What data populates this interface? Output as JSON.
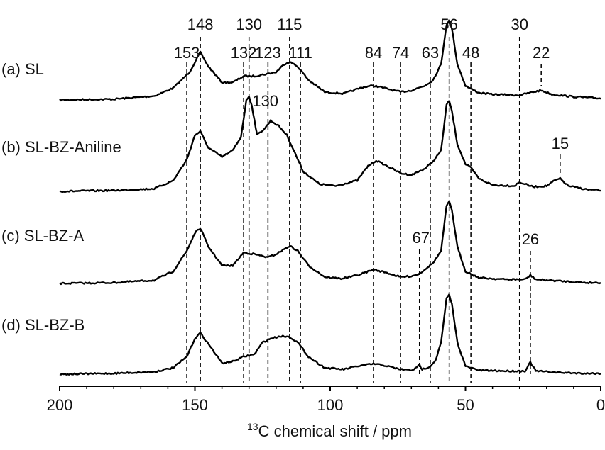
{
  "chart_data": {
    "type": "line",
    "title": "",
    "xlabel_superscript": "13",
    "xlabel_rest": "C chemical shift / ppm",
    "xlim": [
      200,
      0
    ],
    "x_reversed": true,
    "x_ticks": [
      "200",
      "150",
      "100",
      "50",
      "0"
    ],
    "x_tick_values": [
      200,
      150,
      100,
      50,
      0
    ],
    "grid": false,
    "line_color": "#000000",
    "series": [
      {
        "name": "(a) SL",
        "points": [
          [
            200,
            0
          ],
          [
            180,
            0.01
          ],
          [
            165,
            0.05
          ],
          [
            158,
            0.15
          ],
          [
            152,
            0.35
          ],
          [
            148,
            0.6
          ],
          [
            145,
            0.42
          ],
          [
            140,
            0.22
          ],
          [
            136,
            0.22
          ],
          [
            132,
            0.3
          ],
          [
            128,
            0.3
          ],
          [
            123,
            0.33
          ],
          [
            120,
            0.35
          ],
          [
            117,
            0.45
          ],
          [
            115,
            0.48
          ],
          [
            112,
            0.42
          ],
          [
            108,
            0.25
          ],
          [
            102,
            0.1
          ],
          [
            95,
            0.08
          ],
          [
            88,
            0.16
          ],
          [
            84,
            0.18
          ],
          [
            80,
            0.15
          ],
          [
            74,
            0.1
          ],
          [
            70,
            0.12
          ],
          [
            65,
            0.18
          ],
          [
            62,
            0.25
          ],
          [
            59,
            0.45
          ],
          [
            57,
            0.95
          ],
          [
            56,
            1.0
          ],
          [
            55,
            0.9
          ],
          [
            53,
            0.45
          ],
          [
            50,
            0.18
          ],
          [
            48,
            0.14
          ],
          [
            45,
            0.09
          ],
          [
            40,
            0.07
          ],
          [
            30,
            0.06
          ],
          [
            25,
            0.1
          ],
          [
            22,
            0.12
          ],
          [
            18,
            0.07
          ],
          [
            10,
            0.04
          ],
          [
            0,
            0.02
          ]
        ]
      },
      {
        "name": "(b) SL-BZ-Aniline",
        "points": [
          [
            200,
            0
          ],
          [
            180,
            0.01
          ],
          [
            165,
            0.03
          ],
          [
            158,
            0.12
          ],
          [
            153,
            0.35
          ],
          [
            150,
            0.62
          ],
          [
            148,
            0.66
          ],
          [
            145,
            0.48
          ],
          [
            140,
            0.38
          ],
          [
            136,
            0.45
          ],
          [
            133,
            0.6
          ],
          [
            131,
            1.0
          ],
          [
            130,
            1.05
          ],
          [
            129,
            0.95
          ],
          [
            127,
            0.62
          ],
          [
            124,
            0.7
          ],
          [
            122,
            0.78
          ],
          [
            119,
            0.72
          ],
          [
            116,
            0.62
          ],
          [
            113,
            0.42
          ],
          [
            110,
            0.22
          ],
          [
            104,
            0.08
          ],
          [
            98,
            0.06
          ],
          [
            90,
            0.12
          ],
          [
            86,
            0.28
          ],
          [
            83,
            0.34
          ],
          [
            79,
            0.28
          ],
          [
            74,
            0.2
          ],
          [
            70,
            0.18
          ],
          [
            65,
            0.25
          ],
          [
            62,
            0.33
          ],
          [
            59,
            0.45
          ],
          [
            57,
            0.95
          ],
          [
            56,
            1.0
          ],
          [
            55,
            0.88
          ],
          [
            53,
            0.52
          ],
          [
            50,
            0.3
          ],
          [
            48,
            0.26
          ],
          [
            45,
            0.14
          ],
          [
            40,
            0.07
          ],
          [
            32,
            0.06
          ],
          [
            30,
            0.1
          ],
          [
            25,
            0.05
          ],
          [
            20,
            0.06
          ],
          [
            17,
            0.12
          ],
          [
            15,
            0.14
          ],
          [
            12,
            0.06
          ],
          [
            5,
            0.02
          ],
          [
            0,
            0.01
          ]
        ]
      },
      {
        "name": "(c) SL-BZ-A",
        "points": [
          [
            200,
            0
          ],
          [
            180,
            0.01
          ],
          [
            165,
            0.04
          ],
          [
            158,
            0.15
          ],
          [
            153,
            0.4
          ],
          [
            150,
            0.62
          ],
          [
            148,
            0.68
          ],
          [
            145,
            0.45
          ],
          [
            140,
            0.22
          ],
          [
            136,
            0.22
          ],
          [
            132,
            0.38
          ],
          [
            128,
            0.36
          ],
          [
            123,
            0.32
          ],
          [
            120,
            0.36
          ],
          [
            117,
            0.42
          ],
          [
            115,
            0.46
          ],
          [
            112,
            0.4
          ],
          [
            108,
            0.22
          ],
          [
            102,
            0.08
          ],
          [
            96,
            0.06
          ],
          [
            90,
            0.1
          ],
          [
            84,
            0.17
          ],
          [
            80,
            0.14
          ],
          [
            74,
            0.08
          ],
          [
            70,
            0.09
          ],
          [
            67,
            0.12
          ],
          [
            64,
            0.2
          ],
          [
            62,
            0.25
          ],
          [
            59,
            0.4
          ],
          [
            57,
            0.95
          ],
          [
            56,
            1.0
          ],
          [
            55,
            0.9
          ],
          [
            53,
            0.45
          ],
          [
            50,
            0.15
          ],
          [
            45,
            0.07
          ],
          [
            35,
            0.05
          ],
          [
            28,
            0.05
          ],
          [
            26,
            0.1
          ],
          [
            24,
            0.05
          ],
          [
            15,
            0.03
          ],
          [
            5,
            0.01
          ],
          [
            0,
            0.01
          ]
        ]
      },
      {
        "name": "(d) SL-BZ-B",
        "points": [
          [
            200,
            0
          ],
          [
            180,
            0.01
          ],
          [
            165,
            0.03
          ],
          [
            158,
            0.08
          ],
          [
            153,
            0.22
          ],
          [
            150,
            0.45
          ],
          [
            148,
            0.52
          ],
          [
            145,
            0.38
          ],
          [
            140,
            0.14
          ],
          [
            136,
            0.16
          ],
          [
            132,
            0.22
          ],
          [
            128,
            0.25
          ],
          [
            125,
            0.4
          ],
          [
            122,
            0.45
          ],
          [
            118,
            0.48
          ],
          [
            115,
            0.47
          ],
          [
            112,
            0.4
          ],
          [
            108,
            0.22
          ],
          [
            102,
            0.08
          ],
          [
            95,
            0.06
          ],
          [
            90,
            0.1
          ],
          [
            84,
            0.13
          ],
          [
            80,
            0.11
          ],
          [
            74,
            0.06
          ],
          [
            70,
            0.05
          ],
          [
            68,
            0.08
          ],
          [
            67,
            0.12
          ],
          [
            66,
            0.06
          ],
          [
            63,
            0.1
          ],
          [
            61,
            0.18
          ],
          [
            59,
            0.4
          ],
          [
            57,
            0.95
          ],
          [
            56,
            1.0
          ],
          [
            55,
            0.88
          ],
          [
            53,
            0.4
          ],
          [
            50,
            0.1
          ],
          [
            45,
            0.05
          ],
          [
            35,
            0.04
          ],
          [
            28,
            0.04
          ],
          [
            26,
            0.15
          ],
          [
            24,
            0.04
          ],
          [
            15,
            0.02
          ],
          [
            5,
            0.01
          ],
          [
            0,
            0.01
          ]
        ]
      }
    ],
    "reference_lines": [
      {
        "ppm": 153,
        "label": "153",
        "label_row": "upper"
      },
      {
        "ppm": 148,
        "label": "148",
        "label_row": "top"
      },
      {
        "ppm": 132,
        "label": "132",
        "label_row": "upper"
      },
      {
        "ppm": 130,
        "label": "130",
        "label_row": "top"
      },
      {
        "ppm": 123,
        "label": "123",
        "label_row": "upper"
      },
      {
        "ppm": 115,
        "label": "115",
        "label_row": "top"
      },
      {
        "ppm": 111,
        "label": "111",
        "label_row": "upper"
      },
      {
        "ppm": 84,
        "label": "84",
        "label_row": "upper"
      },
      {
        "ppm": 74,
        "label": "74",
        "label_row": "upper"
      },
      {
        "ppm": 63,
        "label": "63",
        "label_row": "upper"
      },
      {
        "ppm": 56,
        "label": "56",
        "label_row": "top"
      },
      {
        "ppm": 48,
        "label": "48",
        "label_row": "upper"
      },
      {
        "ppm": 30,
        "label": "30",
        "label_row": "top"
      }
    ],
    "annotations": [
      {
        "text": "130",
        "ppm": 130,
        "series": 1
      },
      {
        "text": "22",
        "ppm": 22,
        "series": 0
      },
      {
        "text": "15",
        "ppm": 15,
        "series": 1
      },
      {
        "text": "67",
        "ppm": 67,
        "series": 2
      },
      {
        "text": "26",
        "ppm": 26,
        "series": 2
      }
    ]
  }
}
